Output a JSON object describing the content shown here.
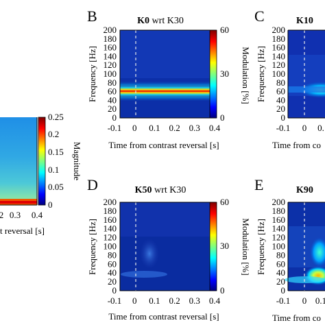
{
  "colors": {
    "jet": [
      "#00007f",
      "#0000ff",
      "#007fff",
      "#00ffff",
      "#7fff7f",
      "#ffff00",
      "#ff7f00",
      "#ff0000",
      "#7f0000"
    ]
  },
  "panels": {
    "A": {
      "colorbar": {
        "ticks": [
          "0.25",
          "0.2",
          "0.15",
          "0.1",
          "0.05",
          "0"
        ],
        "label": "Magnitude"
      },
      "xticks": [
        "0.3",
        "0.4"
      ],
      "xticks_partial": "2",
      "xlabel_fragment": "t reversal [s]"
    },
    "B": {
      "letter": "B",
      "title_bold": "K0",
      "title_rest": " wrt K30",
      "ylabel": "Frequency [Hz]",
      "xlabel": "Time from contrast reversal [s]",
      "yticks": [
        "200",
        "180",
        "160",
        "140",
        "120",
        "100",
        "80",
        "60",
        "40",
        "20",
        "0"
      ],
      "xticks": [
        "-0.1",
        "0",
        "0.1",
        "0.2",
        "0.3",
        "0.4"
      ],
      "colorbar": {
        "ticks": [
          "60",
          "30",
          "0"
        ],
        "label": "Modulation [%]"
      }
    },
    "C": {
      "letter": "C",
      "title_bold": "K10",
      "ylabel": "Frequency [Hz]",
      "yticks": [
        "200",
        "180",
        "160",
        "140",
        "120",
        "100",
        "80",
        "60",
        "40",
        "20",
        "0"
      ],
      "xticks": [
        "-0.1",
        "0",
        "0."
      ],
      "xlabel_fragment": "Time from co"
    },
    "D": {
      "letter": "D",
      "title_bold": "K50",
      "title_rest": " wrt K30",
      "ylabel": "Frequency [Hz]",
      "xlabel": "Time from contrast reversal [s]",
      "yticks": [
        "200",
        "180",
        "160",
        "140",
        "120",
        "100",
        "80",
        "60",
        "40",
        "20",
        "0"
      ],
      "xticks": [
        "-0.1",
        "0",
        "0.1",
        "0.2",
        "0.3",
        "0.4"
      ],
      "colorbar": {
        "ticks": [
          "60",
          "30",
          "0"
        ],
        "label": "Modulation [%]"
      }
    },
    "E": {
      "letter": "E",
      "title_bold": "K90",
      "ylabel": "Frequency [Hz]",
      "yticks": [
        "200",
        "180",
        "160",
        "140",
        "120",
        "100",
        "80",
        "60",
        "40",
        "20",
        "0"
      ],
      "xticks": [
        "-0.1",
        "0",
        "0.1"
      ],
      "xlabel_fragment": "Time from co"
    }
  }
}
